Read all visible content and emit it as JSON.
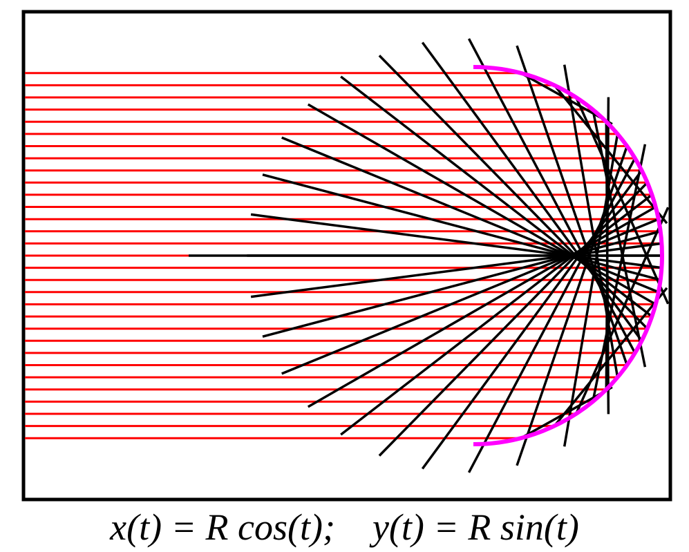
{
  "figure": {
    "caption": "x(t) = R cos(t);    y(t) = R sin(t)",
    "mirror_shape": "semicircle",
    "incoming_ray_count": 31,
    "colors": {
      "frame": "#000000",
      "incoming_rays": "#ff0000",
      "reflected_rays": "#000000",
      "mirror": "#ff00ff",
      "background": "#ffffff"
    }
  }
}
